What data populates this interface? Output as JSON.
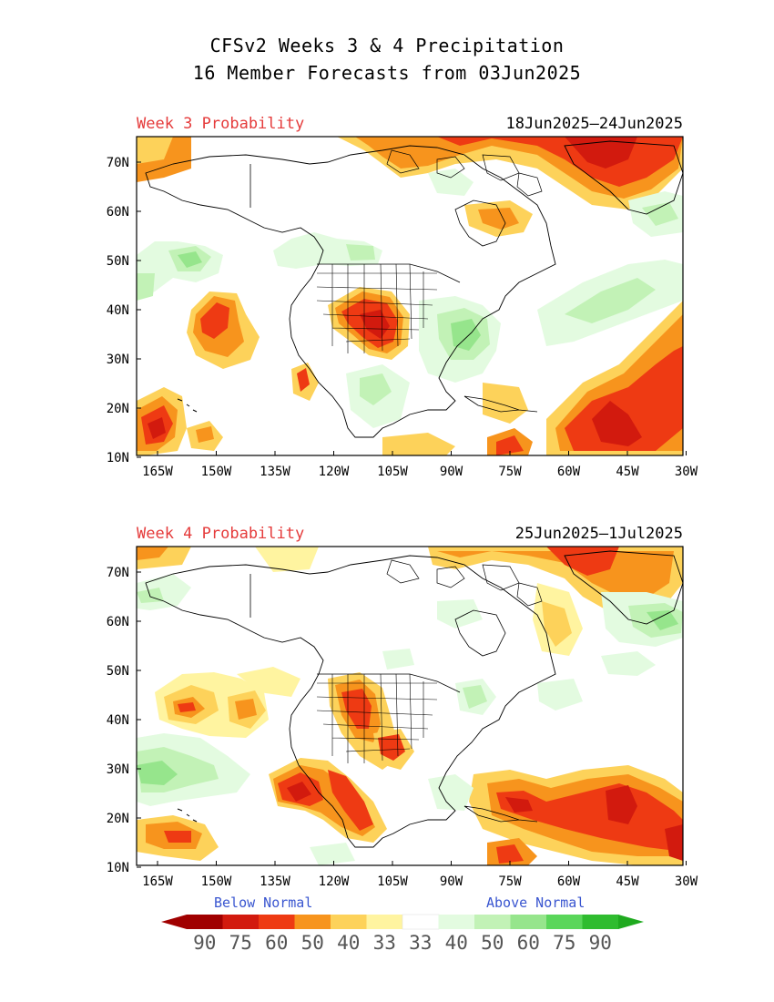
{
  "title_line1": "CFSv2 Weeks 3 & 4 Precipitation",
  "title_line2": "16 Member Forecasts from 03Jun2025",
  "panels": [
    {
      "label": "Week 3 Probability",
      "dates": "18Jun2025—24Jun2025"
    },
    {
      "label": "Week 4 Probability",
      "dates": "25Jun2025—1Jul2025"
    }
  ],
  "lat_labels": [
    "70N",
    "60N",
    "50N",
    "40N",
    "30N",
    "20N",
    "10N"
  ],
  "lon_labels": [
    "165W",
    "150W",
    "135W",
    "120W",
    "105W",
    "90W",
    "75W",
    "60W",
    "45W",
    "30W"
  ],
  "legend": {
    "below_label": "Below Normal",
    "above_label": "Above Normal",
    "values": [
      "90",
      "75",
      "60",
      "50",
      "40",
      "33",
      "33",
      "40",
      "50",
      "60",
      "75",
      "90"
    ],
    "colors": [
      "#a00000",
      "#d21a0e",
      "#ee3a13",
      "#f7941d",
      "#fdd25a",
      "#fff4a0",
      "#ffffff",
      "#e3fbe0",
      "#c2f2b6",
      "#96e58c",
      "#5ad65a",
      "#2fbc2f"
    ]
  },
  "colors": {
    "title_red": "#e53b3b",
    "legend_text": "#3a56d0"
  }
}
